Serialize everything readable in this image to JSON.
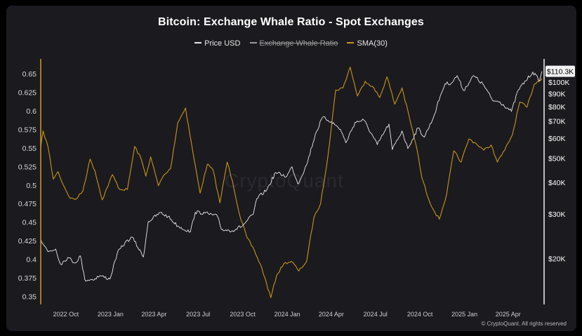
{
  "chart_data": {
    "type": "line",
    "title": "Bitcoin: Exchange Whale Ratio - Spot Exchanges",
    "legend": {
      "placement": "top-center",
      "entries": [
        {
          "label": "Price USD",
          "color": "#e8e8e8",
          "hidden": false
        },
        {
          "label": "Exchange Whale Ratio",
          "color": "#9a9a9a",
          "hidden": true
        },
        {
          "label": "SMA(30)",
          "color": "#c8951a",
          "hidden": false
        }
      ]
    },
    "x_ticks": [
      "2022 Oct",
      "2023 Jan",
      "2023 Apr",
      "2023 Jul",
      "2023 Oct",
      "2024 Jan",
      "2024 Apr",
      "2024 Jul",
      "2024 Oct",
      "2025 Jan",
      "2025 Apr"
    ],
    "x_range": [
      "2022-08-10",
      "2025-06-10"
    ],
    "y_left": {
      "ticks": [
        "0.65",
        "0.625",
        "0.6",
        "0.575",
        "0.55",
        "0.525",
        "0.5",
        "0.475",
        "0.45",
        "0.425",
        "0.4",
        "0.375",
        "0.35"
      ],
      "range": [
        0.337,
        0.672
      ]
    },
    "y_right": {
      "scale": "log",
      "ticks": [
        "$100K",
        "$90K",
        "$80K",
        "$70K",
        "$60K",
        "$50K",
        "$40K",
        "$30K",
        "$20K"
      ],
      "tick_values": [
        100000,
        90000,
        80000,
        70000,
        60000,
        50000,
        40000,
        30000,
        20000
      ],
      "range": [
        13000,
        125000
      ]
    },
    "current_price_label": "$110.3K",
    "current_price_value": 110300,
    "grid": false,
    "series": [
      {
        "name": "Price USD",
        "axis": "right",
        "color": "#e8e8e8",
        "points": [
          [
            "2022-08-10",
            23800
          ],
          [
            "2022-08-25",
            21300
          ],
          [
            "2022-09-10",
            21800
          ],
          [
            "2022-09-20",
            19000
          ],
          [
            "2022-10-05",
            20200
          ],
          [
            "2022-10-20",
            19200
          ],
          [
            "2022-10-31",
            20500
          ],
          [
            "2022-11-09",
            16500
          ],
          [
            "2022-11-25",
            16500
          ],
          [
            "2022-12-10",
            17100
          ],
          [
            "2022-12-31",
            16600
          ],
          [
            "2023-01-15",
            21000
          ],
          [
            "2023-01-31",
            23100
          ],
          [
            "2023-02-15",
            24300
          ],
          [
            "2023-03-10",
            20300
          ],
          [
            "2023-03-20",
            28000
          ],
          [
            "2023-04-14",
            30400
          ],
          [
            "2023-04-30",
            29300
          ],
          [
            "2023-05-20",
            26900
          ],
          [
            "2023-06-15",
            25500
          ],
          [
            "2023-06-25",
            30500
          ],
          [
            "2023-07-15",
            30300
          ],
          [
            "2023-08-10",
            29400
          ],
          [
            "2023-08-18",
            26100
          ],
          [
            "2023-09-10",
            25800
          ],
          [
            "2023-10-01",
            27000
          ],
          [
            "2023-10-23",
            30000
          ],
          [
            "2023-10-30",
            34500
          ],
          [
            "2023-11-20",
            37500
          ],
          [
            "2023-12-08",
            43800
          ],
          [
            "2023-12-31",
            42300
          ],
          [
            "2024-01-11",
            46200
          ],
          [
            "2024-01-23",
            39500
          ],
          [
            "2024-02-10",
            47000
          ],
          [
            "2024-02-28",
            62000
          ],
          [
            "2024-03-14",
            72500
          ],
          [
            "2024-04-01",
            69700
          ],
          [
            "2024-04-20",
            64900
          ],
          [
            "2024-05-01",
            57500
          ],
          [
            "2024-05-20",
            69200
          ],
          [
            "2024-06-07",
            70800
          ],
          [
            "2024-07-05",
            56500
          ],
          [
            "2024-07-29",
            68200
          ],
          [
            "2024-08-05",
            54000
          ],
          [
            "2024-08-25",
            64000
          ],
          [
            "2024-09-06",
            54500
          ],
          [
            "2024-09-27",
            65800
          ],
          [
            "2024-10-10",
            60500
          ],
          [
            "2024-10-29",
            72500
          ],
          [
            "2024-11-12",
            88000
          ],
          [
            "2024-11-22",
            98500
          ],
          [
            "2024-12-05",
            99000
          ],
          [
            "2024-12-17",
            106000
          ],
          [
            "2024-12-30",
            92500
          ],
          [
            "2025-01-20",
            106000
          ],
          [
            "2025-02-10",
            97000
          ],
          [
            "2025-02-28",
            84500
          ],
          [
            "2025-03-15",
            83500
          ],
          [
            "2025-04-08",
            76500
          ],
          [
            "2025-04-22",
            93000
          ],
          [
            "2025-05-22",
            109500
          ],
          [
            "2025-06-05",
            101500
          ],
          [
            "2025-06-10",
            110300
          ]
        ]
      },
      {
        "name": "SMA(30)",
        "axis": "left",
        "color": "#c8951a",
        "points": [
          [
            "2022-08-10",
            0.551
          ],
          [
            "2022-08-15",
            0.573
          ],
          [
            "2022-08-25",
            0.552
          ],
          [
            "2022-09-05",
            0.508
          ],
          [
            "2022-09-15",
            0.518
          ],
          [
            "2022-09-25",
            0.501
          ],
          [
            "2022-10-10",
            0.482
          ],
          [
            "2022-10-22",
            0.481
          ],
          [
            "2022-11-05",
            0.492
          ],
          [
            "2022-11-20",
            0.535
          ],
          [
            "2022-11-30",
            0.519
          ],
          [
            "2022-12-15",
            0.48
          ],
          [
            "2023-01-05",
            0.514
          ],
          [
            "2023-01-20",
            0.494
          ],
          [
            "2023-02-05",
            0.494
          ],
          [
            "2023-02-20",
            0.552
          ],
          [
            "2023-03-05",
            0.536
          ],
          [
            "2023-03-15",
            0.512
          ],
          [
            "2023-03-25",
            0.538
          ],
          [
            "2023-04-10",
            0.499
          ],
          [
            "2023-04-20",
            0.512
          ],
          [
            "2023-05-05",
            0.522
          ],
          [
            "2023-05-20",
            0.584
          ],
          [
            "2023-06-05",
            0.604
          ],
          [
            "2023-06-20",
            0.545
          ],
          [
            "2023-07-05",
            0.489
          ],
          [
            "2023-07-20",
            0.528
          ],
          [
            "2023-08-01",
            0.52
          ],
          [
            "2023-08-15",
            0.476
          ],
          [
            "2023-08-30",
            0.531
          ],
          [
            "2023-09-10",
            0.505
          ],
          [
            "2023-09-25",
            0.459
          ],
          [
            "2023-10-10",
            0.429
          ],
          [
            "2023-10-25",
            0.412
          ],
          [
            "2023-11-10",
            0.387
          ],
          [
            "2023-11-28",
            0.348
          ],
          [
            "2023-12-10",
            0.378
          ],
          [
            "2023-12-25",
            0.394
          ],
          [
            "2024-01-10",
            0.397
          ],
          [
            "2024-01-25",
            0.384
          ],
          [
            "2024-02-10",
            0.397
          ],
          [
            "2024-02-25",
            0.456
          ],
          [
            "2024-03-10",
            0.475
          ],
          [
            "2024-03-25",
            0.539
          ],
          [
            "2024-04-10",
            0.628
          ],
          [
            "2024-04-25",
            0.631
          ],
          [
            "2024-05-10",
            0.659
          ],
          [
            "2024-05-25",
            0.62
          ],
          [
            "2024-06-10",
            0.64
          ],
          [
            "2024-06-25",
            0.633
          ],
          [
            "2024-07-10",
            0.618
          ],
          [
            "2024-07-25",
            0.646
          ],
          [
            "2024-08-10",
            0.609
          ],
          [
            "2024-08-25",
            0.631
          ],
          [
            "2024-09-10",
            0.589
          ],
          [
            "2024-09-25",
            0.548
          ],
          [
            "2024-10-05",
            0.51
          ],
          [
            "2024-10-20",
            0.479
          ],
          [
            "2024-11-01",
            0.463
          ],
          [
            "2024-11-10",
            0.454
          ],
          [
            "2024-11-25",
            0.487
          ],
          [
            "2024-12-10",
            0.546
          ],
          [
            "2024-12-25",
            0.531
          ],
          [
            "2025-01-10",
            0.562
          ],
          [
            "2025-01-25",
            0.556
          ],
          [
            "2025-02-10",
            0.547
          ],
          [
            "2025-02-25",
            0.554
          ],
          [
            "2025-03-10",
            0.531
          ],
          [
            "2025-03-25",
            0.547
          ],
          [
            "2025-04-10",
            0.568
          ],
          [
            "2025-04-25",
            0.612
          ],
          [
            "2025-05-10",
            0.605
          ],
          [
            "2025-05-25",
            0.636
          ],
          [
            "2025-06-10",
            0.644
          ]
        ]
      }
    ]
  },
  "watermark": "CryptoQuant",
  "copyright": "© CryptoQuant. All rights reserved"
}
